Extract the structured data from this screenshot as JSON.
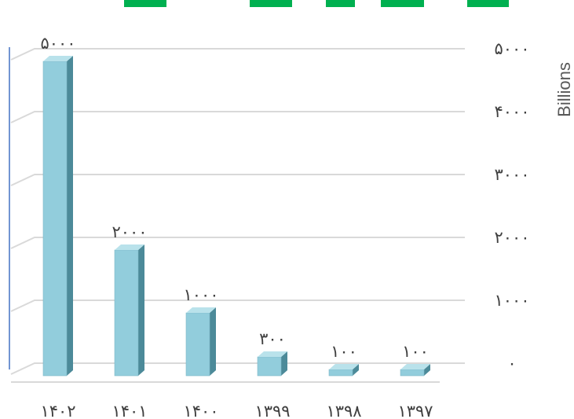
{
  "chart_data": {
    "type": "bar",
    "style": "3d-column",
    "categories": [
      "۱۴۰۲",
      "۱۴۰۱",
      "۱۴۰۰",
      "۱۳۹۹",
      "۱۳۹۸",
      "۱۳۹۷"
    ],
    "values": [
      5000,
      2000,
      1000,
      300,
      100,
      100
    ],
    "data_labels": [
      "۵۰۰۰",
      "۲۰۰۰",
      "۱۰۰۰",
      "۳۰۰",
      "۱۰۰",
      "۱۰۰"
    ],
    "ylabel": "Billions",
    "ylim": [
      0,
      5000
    ],
    "y_axis_position": "right",
    "y_ticks": [
      0,
      1000,
      2000,
      3000,
      4000,
      5000
    ],
    "y_tick_labels": [
      "۰",
      "۱۰۰۰",
      "۲۰۰۰",
      "۳۰۰۰",
      "۴۰۰۰",
      "۵۰۰۰"
    ],
    "grid": true,
    "legend": "none",
    "colors": {
      "bar_front": "#92cddc",
      "bar_side": "#4c8a99",
      "bar_top": "#b9e2eb",
      "grid": "#d9d9d9",
      "accent_bar": "#00b050",
      "left_rule": "#4472c4"
    }
  }
}
